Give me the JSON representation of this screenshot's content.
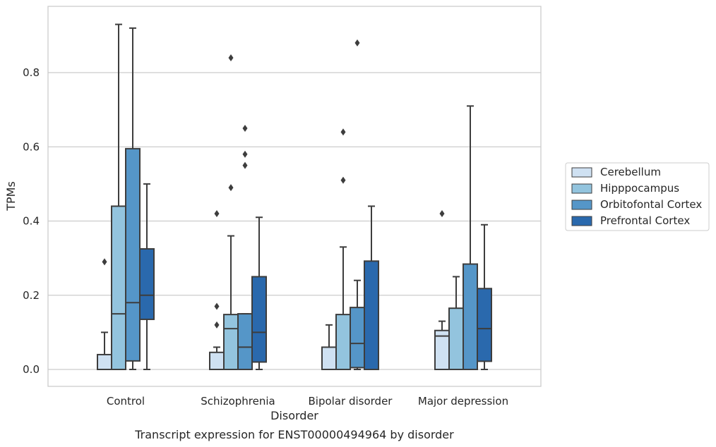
{
  "chart_data": {
    "type": "box",
    "title": "",
    "caption": "Transcript expression for ENST00000494964 by disorder",
    "xlabel": "Disorder",
    "ylabel": "TPMs",
    "ylim": [
      -0.045,
      0.98
    ],
    "yticks": [
      0.0,
      0.2,
      0.4,
      0.6,
      0.8
    ],
    "ytick_labels": [
      "0.0",
      "0.2",
      "0.4",
      "0.6",
      "0.8"
    ],
    "grid": true,
    "legend_position": "right",
    "categories": [
      "Control",
      "Schizophrenia",
      "Bipolar disorder",
      "Major depression"
    ],
    "series": [
      {
        "name": "Cerebellum",
        "color": "#cfe1f2",
        "boxes": [
          {
            "q1": 0.0,
            "median": 0.0,
            "q3": 0.04,
            "whisker_low": 0.0,
            "whisker_high": 0.1,
            "outliers": [
              0.29
            ]
          },
          {
            "q1": 0.0,
            "median": 0.0,
            "q3": 0.046,
            "whisker_low": 0.0,
            "whisker_high": 0.06,
            "outliers": [
              0.12,
              0.17,
              0.42
            ]
          },
          {
            "q1": 0.0,
            "median": 0.0,
            "q3": 0.06,
            "whisker_low": 0.0,
            "whisker_high": 0.12,
            "outliers": []
          },
          {
            "q1": 0.0,
            "median": 0.09,
            "q3": 0.105,
            "whisker_low": 0.0,
            "whisker_high": 0.13,
            "outliers": [
              0.42
            ]
          }
        ]
      },
      {
        "name": "Hipppocampus",
        "color": "#93c4de",
        "boxes": [
          {
            "q1": 0.0,
            "median": 0.15,
            "q3": 0.44,
            "whisker_low": 0.0,
            "whisker_high": 0.93,
            "outliers": []
          },
          {
            "q1": 0.0,
            "median": 0.11,
            "q3": 0.148,
            "whisker_low": 0.0,
            "whisker_high": 0.36,
            "outliers": [
              0.49,
              0.84
            ]
          },
          {
            "q1": 0.0,
            "median": 0.0,
            "q3": 0.148,
            "whisker_low": 0.0,
            "whisker_high": 0.33,
            "outliers": [
              0.51,
              0.64
            ]
          },
          {
            "q1": 0.0,
            "median": 0.0,
            "q3": 0.165,
            "whisker_low": 0.0,
            "whisker_high": 0.25,
            "outliers": []
          }
        ]
      },
      {
        "name": "Orbitofontal Cortex",
        "color": "#5596c8",
        "boxes": [
          {
            "q1": 0.023,
            "median": 0.18,
            "q3": 0.595,
            "whisker_low": 0.0,
            "whisker_high": 0.92,
            "outliers": []
          },
          {
            "q1": 0.0,
            "median": 0.06,
            "q3": 0.15,
            "whisker_low": 0.0,
            "whisker_high": 0.15,
            "outliers": [
              0.55,
              0.58,
              0.65
            ]
          },
          {
            "q1": 0.005,
            "median": 0.07,
            "q3": 0.167,
            "whisker_low": 0.0,
            "whisker_high": 0.24,
            "outliers": [
              0.88
            ]
          },
          {
            "q1": 0.0,
            "median": 0.0,
            "q3": 0.284,
            "whisker_low": 0.0,
            "whisker_high": 0.71,
            "outliers": []
          }
        ]
      },
      {
        "name": "Prefrontal Cortex",
        "color": "#2a69ad",
        "boxes": [
          {
            "q1": 0.135,
            "median": 0.2,
            "q3": 0.325,
            "whisker_low": 0.0,
            "whisker_high": 0.5,
            "outliers": []
          },
          {
            "q1": 0.02,
            "median": 0.1,
            "q3": 0.25,
            "whisker_low": 0.0,
            "whisker_high": 0.41,
            "outliers": []
          },
          {
            "q1": 0.0,
            "median": 0.0,
            "q3": 0.292,
            "whisker_low": 0.0,
            "whisker_high": 0.44,
            "outliers": []
          },
          {
            "q1": 0.022,
            "median": 0.11,
            "q3": 0.218,
            "whisker_low": 0.0,
            "whisker_high": 0.39,
            "outliers": []
          }
        ]
      }
    ]
  }
}
